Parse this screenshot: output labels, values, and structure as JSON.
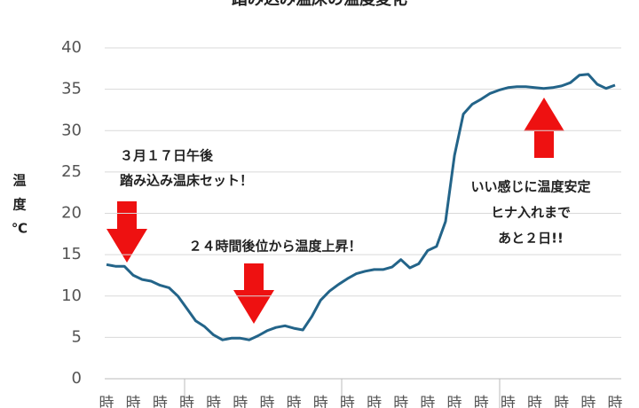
{
  "chart_data": {
    "type": "line",
    "title": "踏み込み温床の温度変化",
    "y_label": [
      "温",
      "度",
      "℃"
    ],
    "categories": [
      "時",
      null,
      null,
      "時",
      null,
      null,
      "時",
      null,
      null,
      "時",
      null,
      null,
      "時",
      null,
      null,
      "時",
      null,
      null,
      "時",
      null,
      null,
      "時",
      null,
      null,
      "時",
      null,
      null,
      "時",
      null,
      null,
      "時",
      null,
      null,
      "時",
      null,
      null,
      "時",
      null,
      null,
      "時",
      null,
      null,
      "時",
      null,
      null,
      "時",
      null,
      null,
      "時",
      null,
      null,
      "時",
      null,
      null,
      "時",
      null,
      null,
      "時"
    ],
    "series": [
      {
        "color": "#236489",
        "values": [
          13.8,
          13.6,
          13.6,
          12.5,
          12.0,
          11.8,
          11.3,
          11.0,
          10.0,
          8.5,
          7.0,
          6.3,
          5.3,
          4.7,
          4.9,
          4.9,
          4.7,
          5.2,
          5.8,
          6.2,
          6.4,
          6.1,
          5.9,
          7.5,
          9.5,
          10.6,
          11.4,
          12.1,
          12.7,
          13.0,
          13.2,
          13.2,
          13.5,
          14.4,
          13.4,
          13.9,
          15.5,
          16.0,
          19.0,
          27.0,
          32.0,
          33.2,
          33.8,
          34.5,
          34.9,
          35.2,
          35.3,
          35.3,
          35.2,
          35.1,
          35.2,
          35.4,
          35.8,
          36.7,
          36.8,
          35.6,
          35.1,
          35.5
        ]
      }
    ],
    "ylim": [
      0,
      40
    ],
    "yticks": [
      0,
      5,
      10,
      15,
      20,
      25,
      30,
      35,
      40
    ],
    "grid": true,
    "annotations": [
      {
        "lines": [
          "３月１７日午後",
          "踏み込み温床セット！"
        ]
      },
      {
        "lines": [
          "２４時間後位から温度上昇！"
        ]
      },
      {
        "lines": [
          "いい感じに温度安定",
          "ヒナ入れまで",
          "あと２日!!"
        ]
      }
    ]
  }
}
